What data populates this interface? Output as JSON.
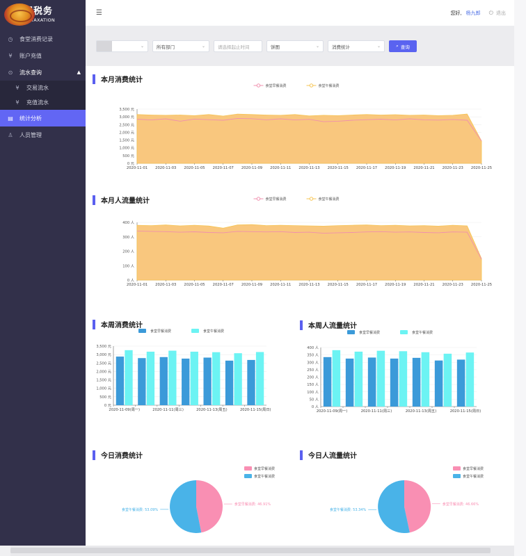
{
  "logo": {
    "cn": "中国税务",
    "en": "CHINA TAXATION"
  },
  "sidebar": {
    "items": [
      {
        "icon": "◷",
        "label": "食堂消费记录"
      },
      {
        "icon": "¥",
        "label": "账户充值"
      },
      {
        "icon": "⊙",
        "label": "流水查询"
      },
      {
        "icon": "¥",
        "label": "交易流水"
      },
      {
        "icon": "¥",
        "label": "充值流水"
      },
      {
        "icon": "▤",
        "label": "统计分析"
      },
      {
        "icon": "♙",
        "label": "人员管理"
      }
    ]
  },
  "topbar": {
    "greeting": "您好,",
    "username": "杨九郎",
    "logout": "退出"
  },
  "filters": {
    "dept": "所有部门",
    "time_placeholder": "请选择起止时间",
    "chart_type": "饼图",
    "stat_type": "消费统计",
    "query": "查询"
  },
  "colors": {
    "breakfast": "#f08fae",
    "lunch": "#f6c451",
    "area": "#f9c77e",
    "bar_breakfast": "#3b9ad9",
    "bar_lunch": "#6cf3f3",
    "pie_breakfast": "#f98fb3",
    "pie_lunch": "#49b3e8",
    "accent": "#5a5ff0"
  },
  "sections": {
    "month_consume": "本月消费统计",
    "month_flow": "本月人流量统计",
    "week_consume": "本周消费统计",
    "week_flow": "本周人流量统计",
    "today_consume": "今日消费统计",
    "today_flow": "今日人流量统计"
  },
  "chart_data": [
    {
      "type": "area",
      "title": "本月消费统计",
      "legend": [
        "食堂早餐消费",
        "食堂午餐消费"
      ],
      "x": [
        "2020-11-01",
        "2020-11-02",
        "2020-11-03",
        "2020-11-04",
        "2020-11-05",
        "2020-11-06",
        "2020-11-07",
        "2020-11-08",
        "2020-11-09",
        "2020-11-10",
        "2020-11-11",
        "2020-11-12",
        "2020-11-13",
        "2020-11-14",
        "2020-11-15",
        "2020-11-16",
        "2020-11-17",
        "2020-11-18",
        "2020-11-19",
        "2020-11-20",
        "2020-11-21",
        "2020-11-22",
        "2020-11-23",
        "2020-11-24",
        "2020-11-25"
      ],
      "xticks": [
        "2020-11-01",
        "2020-11-03",
        "2020-11-05",
        "2020-11-07",
        "2020-11-09",
        "2020-11-11",
        "2020-11-13",
        "2020-11-15",
        "2020-11-17",
        "2020-11-19",
        "2020-11-21",
        "2020-11-23",
        "2020-11-25"
      ],
      "yticks": [
        "0 元",
        "500 元",
        "1,000 元",
        "1,500 元",
        "2,000 元",
        "2,500 元",
        "3,000 元",
        "3,500 元"
      ],
      "ylim": [
        0,
        3500
      ],
      "series": [
        {
          "name": "食堂早餐消费",
          "values": [
            2850,
            2800,
            2870,
            2720,
            2860,
            2820,
            2780,
            2900,
            2880,
            2810,
            2870,
            2800,
            2840,
            2690,
            2720,
            2780,
            2820,
            2850,
            2800,
            2870,
            2810,
            2790,
            2830,
            2780,
            1450
          ]
        },
        {
          "name": "食堂午餐消费",
          "values": [
            3150,
            3120,
            3100,
            3120,
            3080,
            3150,
            3050,
            3180,
            3150,
            3120,
            3100,
            3150,
            3060,
            3100,
            3080,
            3120,
            3150,
            3120,
            3140,
            3100,
            3120,
            3080,
            3100,
            3180,
            1450
          ]
        }
      ]
    },
    {
      "type": "area",
      "title": "本月人流量统计",
      "legend": [
        "食堂早餐消费",
        "食堂午餐消费"
      ],
      "x": [
        "2020-11-01",
        "2020-11-02",
        "2020-11-03",
        "2020-11-04",
        "2020-11-05",
        "2020-11-06",
        "2020-11-07",
        "2020-11-08",
        "2020-11-09",
        "2020-11-10",
        "2020-11-11",
        "2020-11-12",
        "2020-11-13",
        "2020-11-14",
        "2020-11-15",
        "2020-11-16",
        "2020-11-17",
        "2020-11-18",
        "2020-11-19",
        "2020-11-20",
        "2020-11-21",
        "2020-11-22",
        "2020-11-23",
        "2020-11-24",
        "2020-11-25"
      ],
      "xticks": [
        "2020-11-01",
        "2020-11-03",
        "2020-11-05",
        "2020-11-07",
        "2020-11-09",
        "2020-11-11",
        "2020-11-13",
        "2020-11-15",
        "2020-11-17",
        "2020-11-19",
        "2020-11-21",
        "2020-11-23",
        "2020-11-25"
      ],
      "yticks": [
        "0 人",
        "100 人",
        "200 人",
        "300 人",
        "400 人"
      ],
      "ylim": [
        0,
        400
      ],
      "series": [
        {
          "name": "食堂早餐消费",
          "values": [
            340,
            338,
            336,
            332,
            335,
            330,
            328,
            338,
            336,
            334,
            336,
            330,
            332,
            325,
            328,
            330,
            334,
            336,
            332,
            334,
            330,
            328,
            334,
            332,
            145
          ]
        },
        {
          "name": "食堂午餐消费",
          "values": [
            380,
            378,
            382,
            376,
            380,
            375,
            360,
            382,
            385,
            378,
            380,
            378,
            376,
            374,
            378,
            380,
            382,
            378,
            380,
            376,
            378,
            374,
            380,
            376,
            150
          ]
        }
      ]
    },
    {
      "type": "bar",
      "title": "本周消费统计",
      "legend": [
        "食堂早餐消费",
        "食堂午餐消费"
      ],
      "categories": [
        "2020-11-09(周一)",
        "2020-11-10(周二)",
        "2020-11-11(周三)",
        "2020-11-12(周四)",
        "2020-11-13(周五)",
        "2020-11-14(周六)",
        "2020-11-15(周日)"
      ],
      "xlabels": [
        "2020-11-09(周一)",
        "2020-11-11(周三)",
        "2020-11-13(周五)",
        "2020-11-15(周日)"
      ],
      "yticks": [
        "0 元",
        "500 元",
        "1,000 元",
        "1,500 元",
        "2,000 元",
        "2,500 元",
        "3,000 元",
        "3,500 元"
      ],
      "ylim": [
        0,
        3500
      ],
      "series": [
        {
          "name": "食堂早餐消费",
          "values": [
            2880,
            2790,
            2850,
            2760,
            2820,
            2640,
            2680
          ]
        },
        {
          "name": "食堂午餐消费",
          "values": [
            3260,
            3170,
            3230,
            3170,
            3140,
            3080,
            3150
          ]
        }
      ]
    },
    {
      "type": "bar",
      "title": "本周人流量统计",
      "legend": [
        "食堂早餐消费",
        "食堂午餐消费"
      ],
      "categories": [
        "2020-11-09(周一)",
        "2020-11-10(周二)",
        "2020-11-11(周三)",
        "2020-11-12(周四)",
        "2020-11-13(周五)",
        "2020-11-14(周六)",
        "2020-11-15(周日)"
      ],
      "xlabels": [
        "2020-11-09(周一)",
        "2020-11-11(周三)",
        "2020-11-13(周五)",
        "2020-11-15(周日)"
      ],
      "yticks": [
        "0 人",
        "50 人",
        "100 人",
        "150 人",
        "200 人",
        "250 人",
        "300 人",
        "350 人",
        "400 人"
      ],
      "ylim": [
        0,
        400
      ],
      "series": [
        {
          "name": "食堂早餐消费",
          "values": [
            335,
            325,
            332,
            325,
            330,
            312,
            318
          ]
        },
        {
          "name": "食堂午餐消费",
          "values": [
            382,
            372,
            378,
            375,
            368,
            358,
            366
          ]
        }
      ]
    },
    {
      "type": "pie",
      "title": "今日消费统计",
      "legend": [
        "食堂早餐消费",
        "食堂午餐消费"
      ],
      "slices": [
        {
          "name": "食堂早餐消费",
          "label": "食堂早餐消费: 46.91%",
          "value": 46.91
        },
        {
          "name": "食堂午餐消费",
          "label": "食堂午餐消费: 53.09%",
          "value": 53.09
        }
      ]
    },
    {
      "type": "pie",
      "title": "今日人流量统计",
      "legend": [
        "食堂早餐消费",
        "食堂午餐消费"
      ],
      "slices": [
        {
          "name": "食堂早餐消费",
          "label": "食堂早餐消费: 46.66%",
          "value": 46.66
        },
        {
          "name": "食堂午餐消费",
          "label": "食堂午餐消费: 53.34%",
          "value": 53.34
        }
      ]
    }
  ]
}
